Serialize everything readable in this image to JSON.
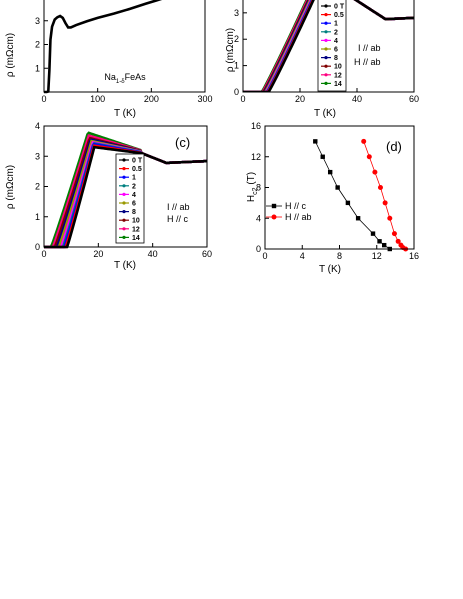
{
  "chart_data": [
    {
      "id": "a",
      "type": "line",
      "panel_label": "",
      "xlabel": "T (K)",
      "ylabel": "ρ (mΩcm)",
      "xlim": [
        0,
        300
      ],
      "ylim": [
        0,
        4
      ],
      "xticks": [
        "0",
        "100",
        "200",
        "300"
      ],
      "yticks": [
        "3",
        "2",
        "1"
      ],
      "annotation": "Na",
      "annotation_sub": "1-δ",
      "annotation_tail": "FeAs",
      "series": [
        {
          "name": "",
          "color": "#000000",
          "x": [
            0,
            5,
            8,
            10,
            12,
            15,
            20,
            25,
            30,
            35,
            40,
            45,
            50,
            60,
            80,
            100,
            130,
            160,
            190,
            210,
            230
          ],
          "y": [
            0,
            0,
            0.02,
            0.9,
            2.2,
            2.75,
            3.05,
            3.15,
            3.2,
            3.12,
            2.9,
            2.72,
            2.72,
            2.82,
            2.98,
            3.12,
            3.3,
            3.5,
            3.72,
            3.86,
            4.0
          ]
        }
      ]
    },
    {
      "id": "b",
      "type": "line",
      "panel_label": "",
      "xlabel": "T (K)",
      "ylabel": "ρ (mΩcm)",
      "xlim": [
        0,
        60
      ],
      "ylim": [
        0,
        3.6
      ],
      "xticks": [
        "0",
        "20",
        "40",
        "60"
      ],
      "yticks": [
        "0",
        "1",
        "2",
        "3"
      ],
      "note_line1": "I // ab",
      "note_line2": "H // ab",
      "legend_loc": "right",
      "legend_fields": [
        "0 T",
        "0.5",
        "1",
        "2",
        "4",
        "6",
        "8",
        "10",
        "12",
        "14"
      ],
      "colors": [
        "#000000",
        "#ff0000",
        "#0000ff",
        "#008080",
        "#ff00ff",
        "#999900",
        "#000080",
        "#800000",
        "#ff0080",
        "#008000"
      ],
      "tc_onset": [
        9.0,
        8.8,
        8.6,
        8.4,
        8.1,
        7.8,
        7.5,
        7.2,
        6.9,
        6.6
      ]
    },
    {
      "id": "c",
      "type": "line",
      "panel_label": "(c)",
      "xlabel": "T (K)",
      "ylabel": "ρ (mΩcm)",
      "xlim": [
        0,
        60
      ],
      "ylim": [
        0,
        4
      ],
      "xticks": [
        "0",
        "20",
        "40",
        "60"
      ],
      "yticks": [
        "0",
        "1",
        "2",
        "3",
        "4"
      ],
      "note_line1": "I // ab",
      "note_line2": "H // c",
      "legend_loc": "center-right",
      "legend_fields": [
        "0 T",
        "0.5",
        "1",
        "2",
        "4",
        "6",
        "8",
        "10",
        "12",
        "14"
      ],
      "colors": [
        "#000000",
        "#ff0000",
        "#0000ff",
        "#008080",
        "#ff00ff",
        "#999900",
        "#000080",
        "#800000",
        "#ff0080",
        "#008000"
      ],
      "tc_onset": [
        8.5,
        8.0,
        7.5,
        7.0,
        6.3,
        5.5,
        4.8,
        4.0,
        3.3,
        2.6
      ],
      "peak": [
        3.3,
        3.35,
        3.4,
        3.43,
        3.46,
        3.5,
        3.55,
        3.6,
        3.68,
        3.78
      ]
    },
    {
      "id": "d",
      "type": "scatter",
      "panel_label": "(d)",
      "xlabel": "T (K)",
      "ylabel": "H",
      "ylabel_sub": "c2",
      "ylabel_tail": " (T)",
      "xlim": [
        0,
        16
      ],
      "ylim": [
        0,
        16
      ],
      "xticks": [
        "0",
        "4",
        "8",
        "12",
        "16"
      ],
      "yticks": [
        "0",
        "4",
        "8",
        "12",
        "16"
      ],
      "legend_loc": "left",
      "series": [
        {
          "name": "H // c",
          "color": "#000000",
          "marker": "square",
          "x": [
            5.4,
            6.2,
            7.0,
            7.8,
            8.9,
            10.0,
            11.6,
            12.3,
            12.8,
            13.4
          ],
          "y": [
            14,
            12,
            10,
            8,
            6,
            4,
            2,
            1,
            0.5,
            0
          ]
        },
        {
          "name": "H // ab",
          "color": "#ff0000",
          "marker": "circle",
          "x": [
            10.6,
            11.2,
            11.8,
            12.4,
            12.9,
            13.4,
            13.9,
            14.3,
            14.6,
            14.8,
            15.1
          ],
          "y": [
            14,
            12,
            10,
            8,
            6,
            4,
            2,
            1,
            0.5,
            0.2,
            0
          ]
        }
      ]
    }
  ]
}
